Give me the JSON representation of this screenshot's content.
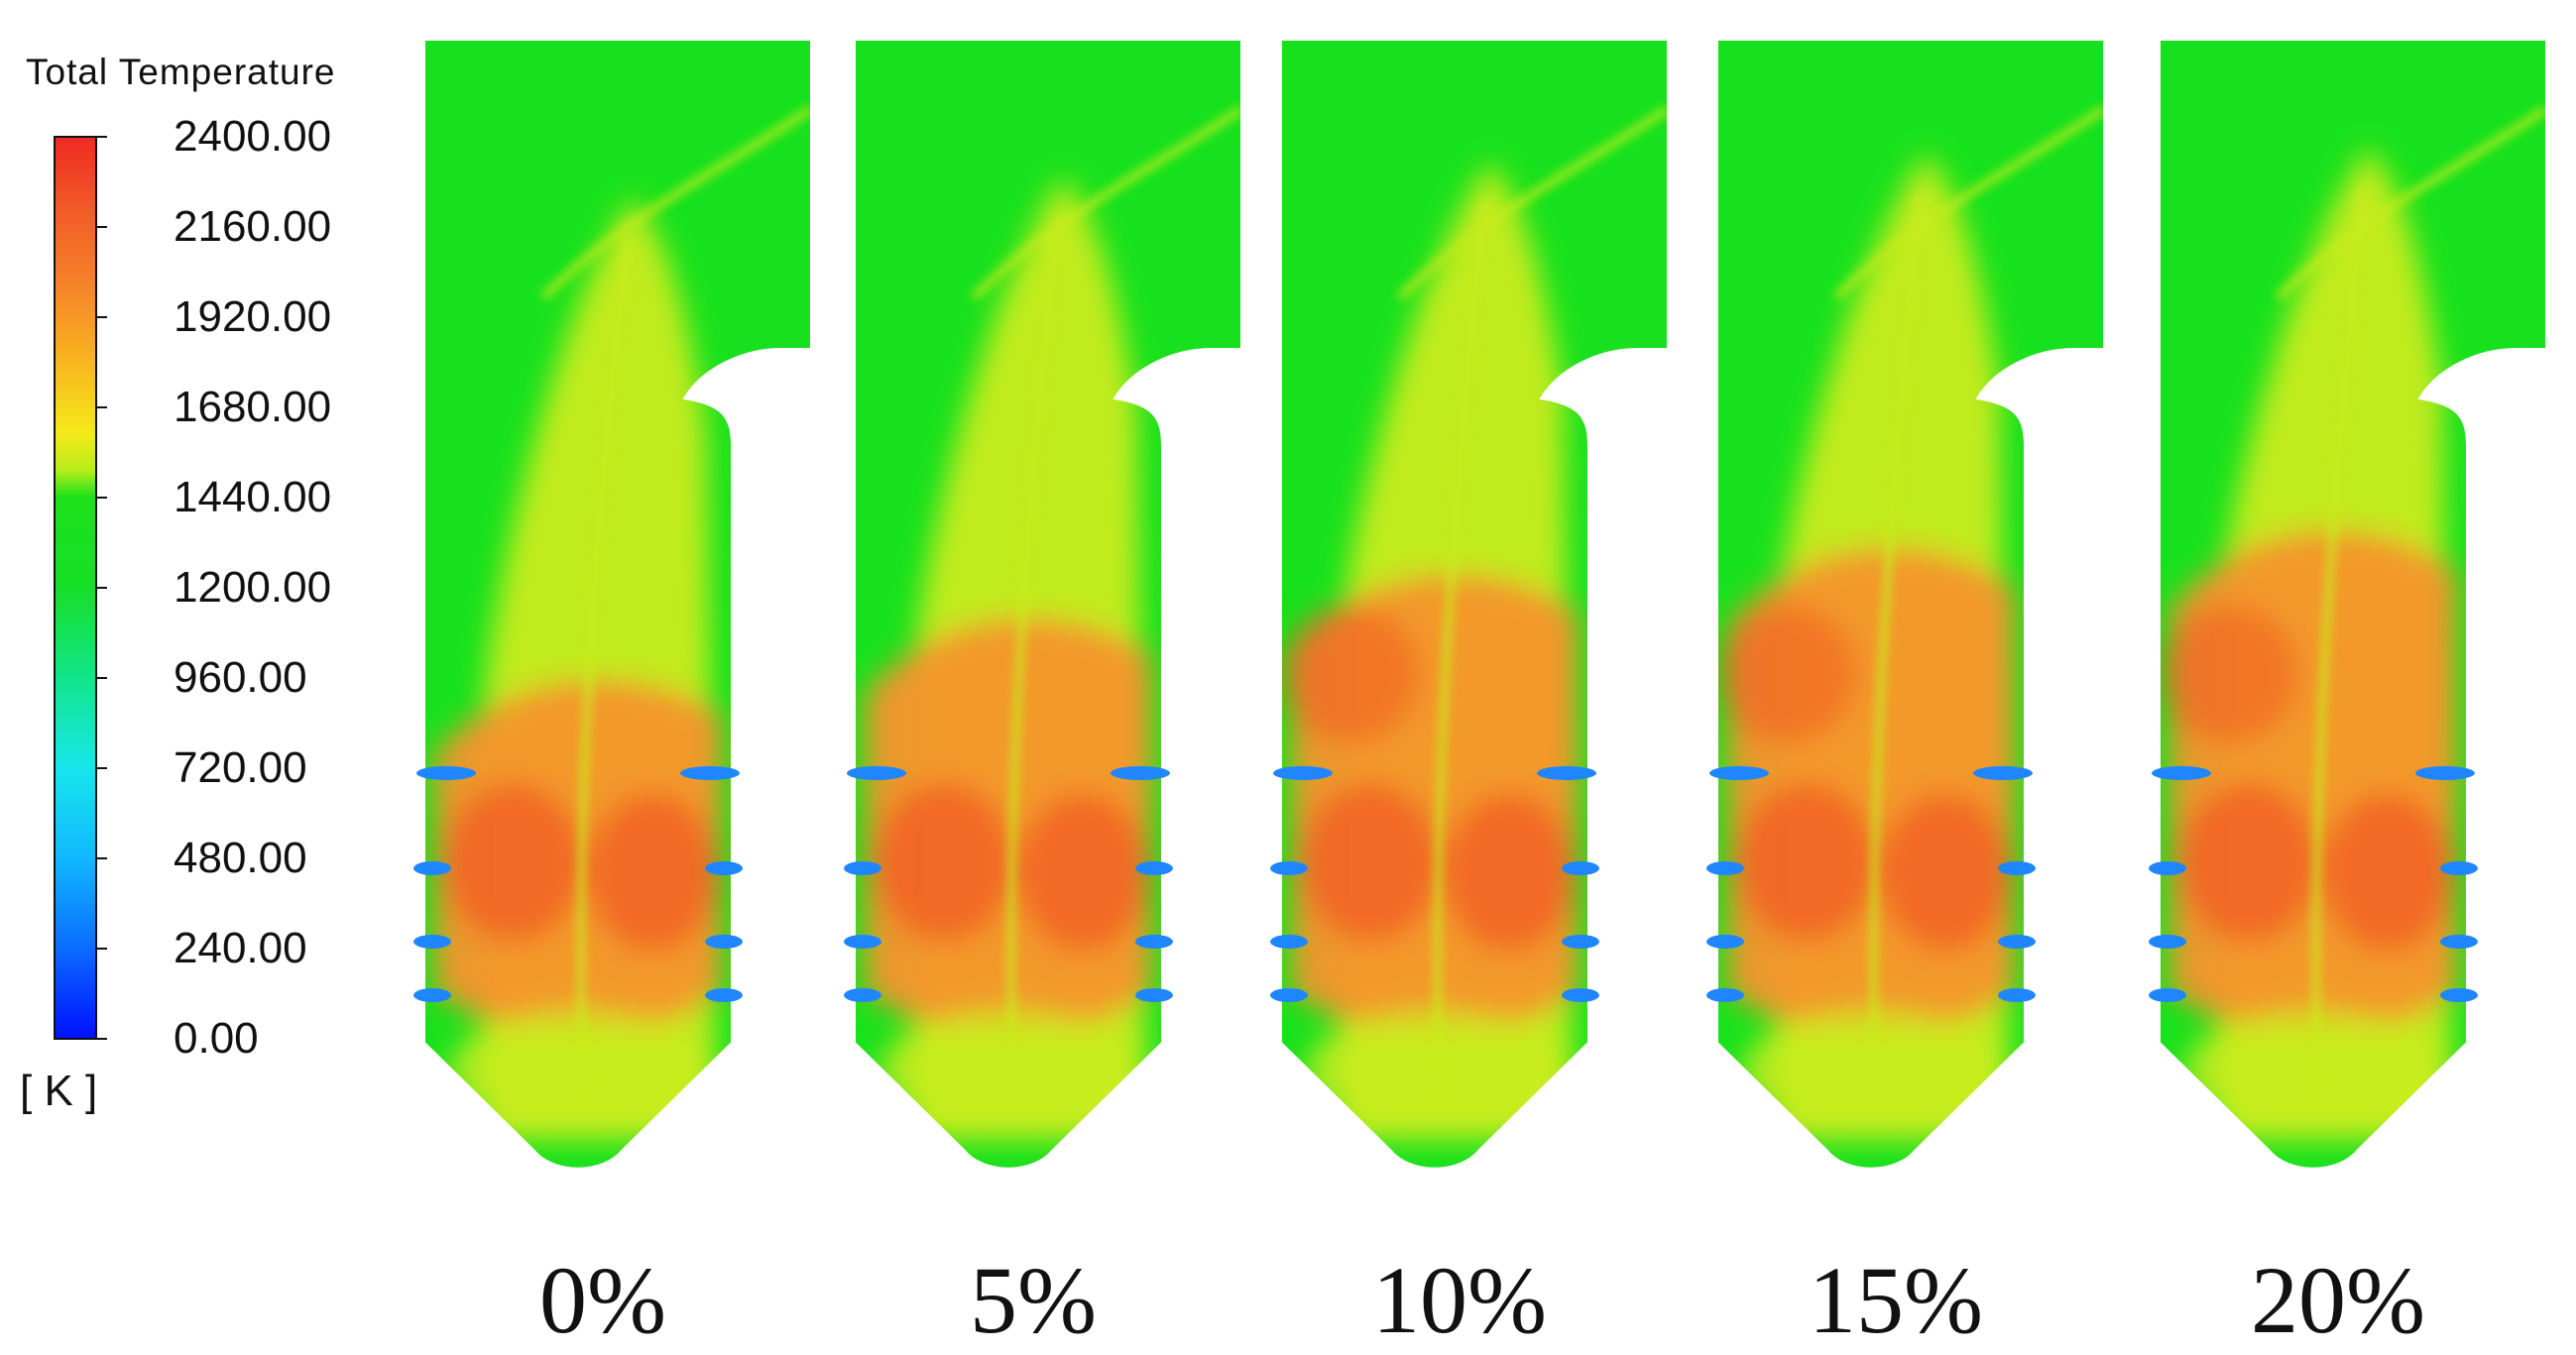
{
  "legend": {
    "title": "Total Temperature",
    "unit": "[ K ]",
    "ticks": [
      "2400.00",
      "2160.00",
      "1920.00",
      "1680.00",
      "1440.00",
      "1200.00",
      "960.00",
      "720.00",
      "480.00",
      "240.00",
      "0.00"
    ],
    "colormap": [
      "#0010ff",
      "#0a6cff",
      "#11b8ff",
      "#17e6ec",
      "#12e58a",
      "#16df28",
      "#1be11a",
      "#b6ee1a",
      "#f5ea1b",
      "#f8b61e",
      "#f6862a",
      "#f25a27",
      "#ef2a23"
    ]
  },
  "panels": [
    {
      "label": "0%"
    },
    {
      "label": "5%"
    },
    {
      "label": "10%"
    },
    {
      "label": "15%"
    },
    {
      "label": "20%"
    }
  ],
  "colors": {
    "cold_green": "#17e11e",
    "warm_yellow": "#c9ec1f",
    "hot_orange": "#f6952a",
    "hottest": "#f15a27",
    "inlet_blue": "#1f86ff"
  }
}
